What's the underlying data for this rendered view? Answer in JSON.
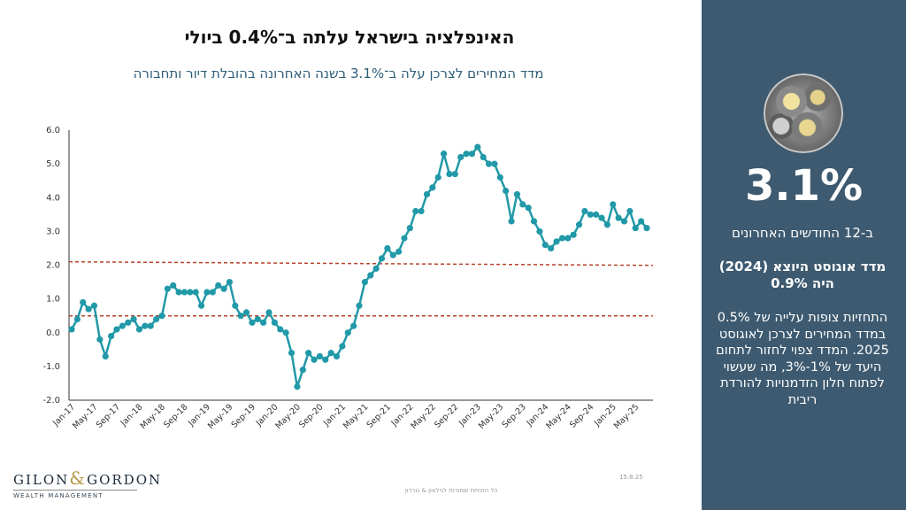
{
  "header": {
    "title": "האינפלציה בישראל עלתה ב־0.4% ביולי",
    "subtitle": "מדד המחירים לצרכן עלה ב־3.1% בשנה האחרונה בהובלת דיור ותחבורה"
  },
  "sidebar": {
    "big_number": "3.1%",
    "period_label": "ב-12 החודשים האחרונים",
    "highlight_line1": "מדד אוגוסט היוצא (2024)",
    "highlight_line2": "היה 0.9%",
    "paragraph": "התחזיות צופות עלייה של 0.5% במדד המחירים לצרכן לאוגוסט 2025. המדד צפוי לחזור לתחום היעד של 1%-3%, מה שעשוי לפתוח חלון הזדמנויות להורדת ריבית",
    "image": "coins-image"
  },
  "footer": {
    "logo_text_left": "GILON",
    "logo_amp": "&",
    "logo_text_right": "GORDON",
    "logo_sub": "WEALTH MANAGEMENT",
    "date": "15.8.25",
    "copyright": "כל הזכויות שמורות לגילאון & גורדון"
  },
  "colors": {
    "line": "#2199a8",
    "target_band": "#b5452a",
    "sidebar_bg": "#3d5a70"
  },
  "chart_data": {
    "type": "line",
    "ylim": [
      -2,
      6
    ],
    "yticks": [
      "-2.0",
      "-1.0",
      "0.0",
      "1.0",
      "2.0",
      "3.0",
      "4.0",
      "5.0",
      "6.0"
    ],
    "x_tick_labels": [
      "Jan-17",
      "May-17",
      "Sep-17",
      "Jan-18",
      "May-18",
      "Sep-18",
      "Jan-19",
      "May-19",
      "Sep-19",
      "Jan-20",
      "May-20",
      "Sep-20",
      "Jan-21",
      "May-21",
      "Sep-21",
      "Jan-22",
      "May-22",
      "Sep-22",
      "Jan-23",
      "May-23",
      "Sep-23",
      "Jan-24",
      "May-24",
      "Sep-24",
      "Jan-25",
      "May-25"
    ],
    "target_band": [
      0.5,
      2.1
    ],
    "series": [
      {
        "values": [
          0.1,
          0.4,
          0.9,
          0.7,
          0.8,
          -0.2,
          -0.7,
          -0.1,
          0.1,
          0.2,
          0.3,
          0.4,
          0.1,
          0.2,
          0.2,
          0.4,
          0.5,
          1.3,
          1.4,
          1.2,
          1.2,
          1.2,
          1.2,
          0.8,
          1.2,
          1.2,
          1.4,
          1.3,
          1.5,
          0.8,
          0.5,
          0.6,
          0.3,
          0.4,
          0.3,
          0.6,
          0.3,
          0.1,
          0.0,
          -0.6,
          -1.6,
          -1.1,
          -0.6,
          -0.8,
          -0.7,
          -0.8,
          -0.6,
          -0.7,
          -0.4,
          0.0,
          0.2,
          0.8,
          1.5,
          1.7,
          1.9,
          2.2,
          2.5,
          2.3,
          2.4,
          2.8,
          3.1,
          3.6,
          3.6,
          4.1,
          4.3,
          4.6,
          5.3,
          4.7,
          4.7,
          5.2,
          5.3,
          5.3,
          5.5,
          5.2,
          5.0,
          5.0,
          4.6,
          4.2,
          3.3,
          4.1,
          3.8,
          3.7,
          3.3,
          3.0,
          2.6,
          2.5,
          2.7,
          2.8,
          2.8,
          2.9,
          3.2,
          3.6,
          3.5,
          3.5,
          3.4,
          3.2,
          3.8,
          3.4,
          3.3,
          3.6,
          3.1,
          3.3,
          3.1
        ]
      }
    ]
  }
}
